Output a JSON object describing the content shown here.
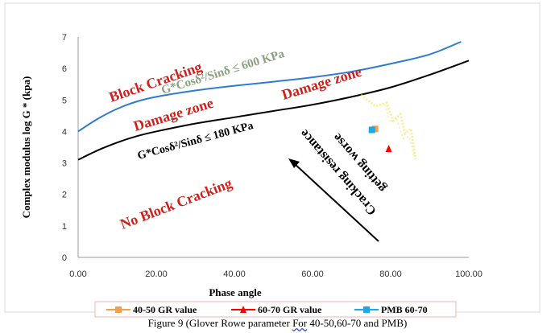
{
  "caption": {
    "prefix": "Figure 9 (Glover Rowe parameter ",
    "underlined": "For",
    "suffix": " 40-50,60-70 and PMB)"
  },
  "chart_data": {
    "type": "scatter",
    "xlabel": "Phase angle",
    "ylabel": "Complex modulus log G * (kpa)",
    "xlim": [
      0,
      100
    ],
    "ylim": [
      0,
      7
    ],
    "x_ticks": [
      "0.00",
      "20.00",
      "40.00",
      "60.00",
      "80.00",
      "100.00"
    ],
    "y_ticks": [
      "0",
      "1",
      "2",
      "3",
      "4",
      "5",
      "6",
      "7"
    ],
    "grid": false,
    "legend_position": "bottom",
    "series": [
      {
        "name": "40-50 GR value",
        "color": "#f0a050",
        "marker": "square",
        "points": [
          [
            76.0,
            4.08
          ]
        ]
      },
      {
        "name": "60-70 GR value",
        "color": "#ff0000",
        "marker": "triangle",
        "points": [
          [
            79.5,
            3.45
          ]
        ]
      },
      {
        "name": "PMB 60-70",
        "color": "#1ca8e8",
        "marker": "square",
        "points": [
          [
            75.2,
            4.05
          ]
        ]
      }
    ],
    "curves": [
      {
        "role": "upper-limit",
        "color": "#2e7cd0",
        "points": [
          [
            0,
            4.0
          ],
          [
            5,
            4.4
          ],
          [
            10,
            4.72
          ],
          [
            15,
            4.95
          ],
          [
            20,
            5.1
          ],
          [
            30,
            5.3
          ],
          [
            40,
            5.45
          ],
          [
            50,
            5.58
          ],
          [
            60,
            5.72
          ],
          [
            70,
            5.9
          ],
          [
            80,
            6.15
          ],
          [
            90,
            6.45
          ],
          [
            98,
            6.85
          ]
        ]
      },
      {
        "role": "lower-limit",
        "color": "#000000",
        "points": [
          [
            0,
            3.1
          ],
          [
            5,
            3.4
          ],
          [
            10,
            3.65
          ],
          [
            15,
            3.85
          ],
          [
            20,
            4.0
          ],
          [
            30,
            4.25
          ],
          [
            40,
            4.45
          ],
          [
            50,
            4.65
          ],
          [
            60,
            4.85
          ],
          [
            70,
            5.1
          ],
          [
            80,
            5.4
          ],
          [
            90,
            5.8
          ],
          [
            100,
            6.25
          ]
        ]
      }
    ],
    "annotations": {
      "block_cracking": "Block Cracking",
      "upper_equation": "G*Cosδ²/Sinδ ≤ 600 KPa",
      "damage_zone_left": "Damage zone",
      "damage_zone_right": "Damage zone",
      "lower_equation": "G*Cosδ²/Sinδ ≤ 180 KPa",
      "no_block_cracking": "No Block Cracking",
      "cracking_resistance": "Cracking resistance",
      "getting_worse": "getting worse"
    }
  },
  "colors": {
    "zone_text": "#d0201c",
    "upper_equation": "#8aa080",
    "axis": "#999999",
    "frame": "#d9d9d9",
    "smear": "#f4e86a"
  }
}
